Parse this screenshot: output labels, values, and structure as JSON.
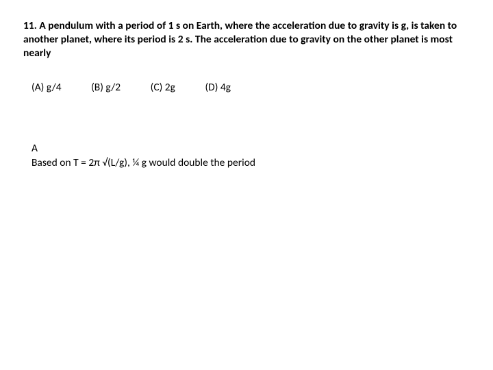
{
  "question": {
    "text": "11. A pendulum with a period of 1 s on Earth, where the acceleration due to gravity is g, is taken to another planet, where its period is 2 s. The acceleration due to gravity on the other planet is most nearly"
  },
  "choices": {
    "a": "(A) g/4",
    "b": "(B) g/2",
    "c": "(C) 2g",
    "d": "(D) 4g"
  },
  "answer": {
    "letter": "A",
    "explanation": "Based on T = 2π √(L/g), ¼ g would double the period"
  }
}
